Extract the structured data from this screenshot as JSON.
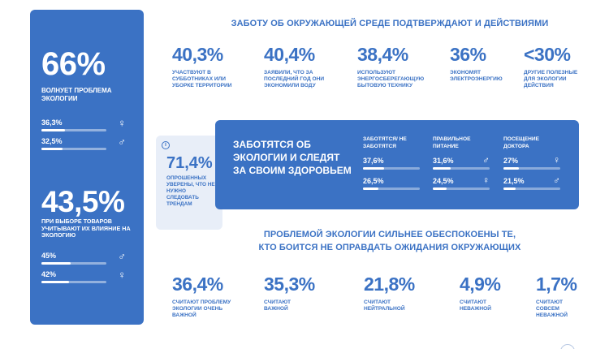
{
  "sidebar": {
    "stat1": {
      "value": "66%",
      "caption": "Волнует проблема экологии"
    },
    "stat1_bars": [
      {
        "value": "36,3%",
        "level": 0.363,
        "symbol": "♀"
      },
      {
        "value": "32,5%",
        "level": 0.325,
        "symbol": "♂"
      }
    ],
    "stat2": {
      "value": "43,5%",
      "caption": "при выборе товаров учитывают их влияние на экологию"
    },
    "stat2_bars": [
      {
        "value": "45%",
        "level": 0.45,
        "symbol": "♂"
      },
      {
        "value": "42%",
        "level": 0.42,
        "symbol": "♀"
      }
    ]
  },
  "top": {
    "header": "ЗАБОТУ ОБ ОКРУЖАЮЩЕЙ СРЕДЕ ПОДТВЕРЖДАЮТ И ДЕЙСТВИЯМИ",
    "stats": [
      {
        "value": "40,3%",
        "desc": "участвуют в субботниках или уборке территории"
      },
      {
        "value": "40,4%",
        "desc": "заявили, что за последний год они экономили воду"
      },
      {
        "value": "38,4%",
        "desc": "используют энергосберегающую бытовую технику"
      },
      {
        "value": "36%",
        "desc": "экономят электроэнергию"
      },
      {
        "value": "<30%",
        "desc": "другие полезные для экологии действия"
      }
    ]
  },
  "info_card": {
    "icon": "info-icon",
    "value": "71,4%",
    "desc": "опрошенных уверены, что не нужно следовать трендам"
  },
  "panel": {
    "title": "Заботятся об экологии и следят за своим здоровьем",
    "columns": [
      {
        "header": "Заботятся/ не заботятся",
        "rows": [
          {
            "value": "37,6%",
            "level": 0.376,
            "symbol": ""
          },
          {
            "value": "26,5%",
            "level": 0.265,
            "symbol": ""
          }
        ]
      },
      {
        "header": "Правильное питание",
        "rows": [
          {
            "value": "31,6%",
            "level": 0.316,
            "symbol": "♂"
          },
          {
            "value": "24,5%",
            "level": 0.245,
            "symbol": "♀"
          }
        ]
      },
      {
        "header": "Посещение доктора",
        "rows": [
          {
            "value": "27%",
            "level": 0.27,
            "symbol": "♀"
          },
          {
            "value": "21,5%",
            "level": 0.215,
            "symbol": "♂"
          }
        ]
      }
    ]
  },
  "bottom": {
    "header_line1": "ПРОБЛЕМОЙ ЭКОЛОГИИ СИЛЬНЕЕ ОБЕСПОКОЕНЫ ТЕ,",
    "header_line2": "КТО БОИТСЯ НЕ ОПРАВДАТЬ ОЖИДАНИЯ ОКРУЖАЮЩИХ",
    "stats": [
      {
        "value": "36,4%",
        "desc": "считают проблему экологии очень важной"
      },
      {
        "value": "35,3%",
        "desc": "считают важной"
      },
      {
        "value": "21,8%",
        "desc": "считают нейтральной"
      },
      {
        "value": "4,9%",
        "desc": "считают неважной"
      },
      {
        "value": "1,7%",
        "desc": "считают совсем неважной"
      }
    ]
  },
  "colors": {
    "accent": "#3b72c4",
    "card_bg": "#e8eef8",
    "text_on_accent": "#ffffff"
  }
}
